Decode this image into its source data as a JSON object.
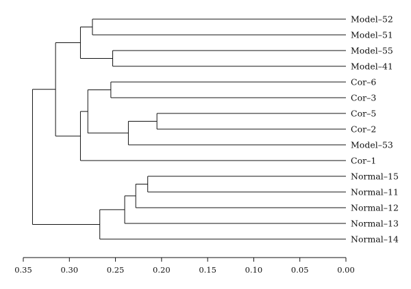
{
  "chart_data": {
    "type": "dendrogram",
    "orientation": "horizontal",
    "xlim": [
      0.35,
      0.0
    ],
    "leaves": [
      "Model–52",
      "Model–51",
      "Model–55",
      "Model–41",
      "Cor–6",
      "Cor–3",
      "Cor–5",
      "Cor–2",
      "Model–53",
      "Cor–1",
      "Normal–15",
      "Normal–11",
      "Normal–12",
      "Normal–13",
      "Normal–14"
    ],
    "merges": [
      {
        "id": "m1",
        "children": [
          "Model–52",
          "Model–51"
        ],
        "height": 0.275
      },
      {
        "id": "m2",
        "children": [
          "Model–55",
          "Model–41"
        ],
        "height": 0.253
      },
      {
        "id": "m3",
        "children": [
          "m1",
          "m2"
        ],
        "height": 0.288
      },
      {
        "id": "m4",
        "children": [
          "Cor–6",
          "Cor–3"
        ],
        "height": 0.255
      },
      {
        "id": "m5",
        "children": [
          "Cor–5",
          "Cor–2"
        ],
        "height": 0.205
      },
      {
        "id": "m6",
        "children": [
          "m5",
          "Model–53"
        ],
        "height": 0.236
      },
      {
        "id": "m7",
        "children": [
          "m4",
          "m6"
        ],
        "height": 0.28
      },
      {
        "id": "m8",
        "children": [
          "m7",
          "Cor–1"
        ],
        "height": 0.288
      },
      {
        "id": "m9",
        "children": [
          "m3",
          "m8"
        ],
        "height": 0.315
      },
      {
        "id": "m10",
        "children": [
          "Normal–15",
          "Normal–11"
        ],
        "height": 0.215
      },
      {
        "id": "m11",
        "children": [
          "m10",
          "Normal–12"
        ],
        "height": 0.228
      },
      {
        "id": "m12",
        "children": [
          "m11",
          "Normal–13"
        ],
        "height": 0.24
      },
      {
        "id": "m13",
        "children": [
          "m12",
          "Normal–14"
        ],
        "height": 0.267
      },
      {
        "id": "m14",
        "children": [
          "m9",
          "m13"
        ],
        "height": 0.34
      }
    ],
    "x_ticks": [
      0.35,
      0.3,
      0.25,
      0.2,
      0.15,
      0.1,
      0.05,
      0.0
    ],
    "x_tick_labels": [
      "0.35",
      "0.30",
      "0.25",
      "0.20",
      "0.15",
      "0.10",
      "0.05",
      "0.00"
    ]
  }
}
